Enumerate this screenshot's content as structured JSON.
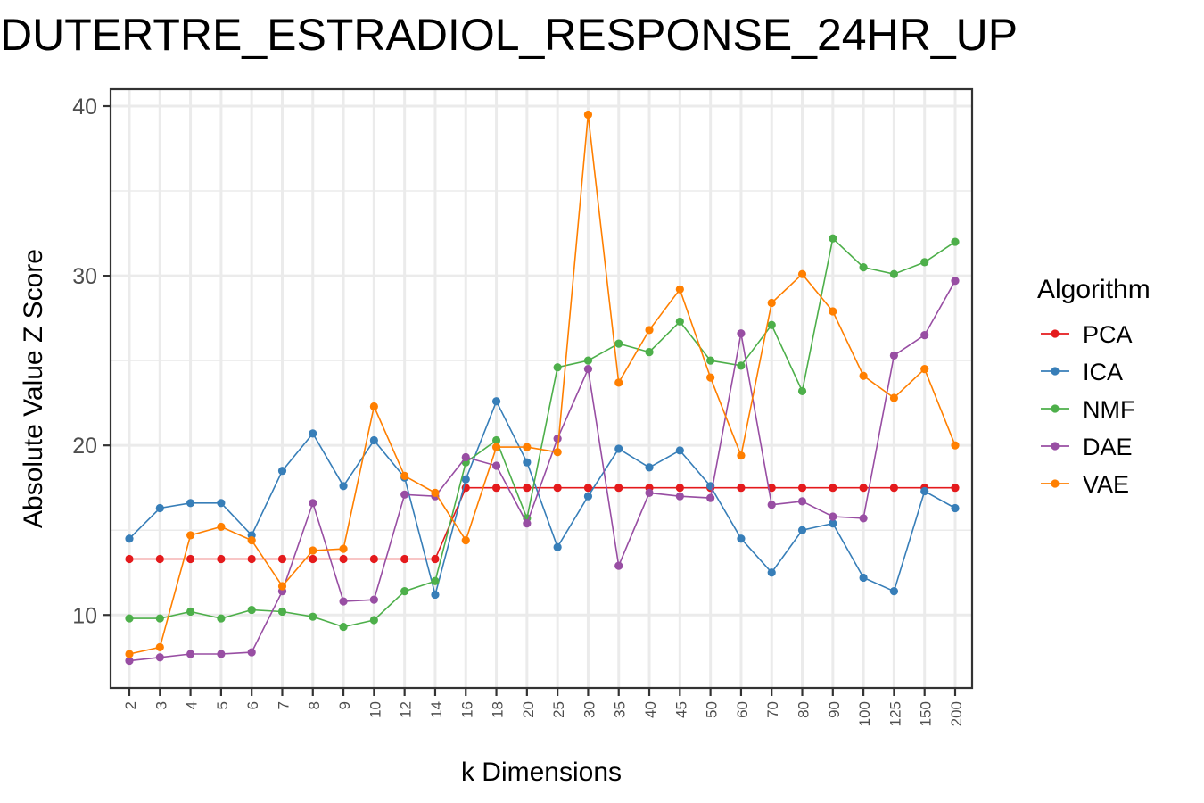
{
  "chart_data": {
    "type": "line",
    "title": "DUTERTRE_ESTRADIOL_RESPONSE_24HR_UP",
    "xlabel": "k Dimensions",
    "ylabel": "Absolute Value Z Score",
    "categories": [
      "2",
      "3",
      "4",
      "5",
      "6",
      "7",
      "8",
      "9",
      "10",
      "12",
      "14",
      "16",
      "18",
      "20",
      "25",
      "30",
      "35",
      "40",
      "45",
      "50",
      "60",
      "70",
      "80",
      "90",
      "100",
      "125",
      "150",
      "200"
    ],
    "ylim": [
      5.7,
      41
    ],
    "yticks": [
      10,
      20,
      30,
      40
    ],
    "grid": true,
    "legend": {
      "title": "Algorithm",
      "position": "right"
    },
    "series": [
      {
        "name": "PCA",
        "color": "#e41a1c",
        "values": [
          13.3,
          13.3,
          13.3,
          13.3,
          13.3,
          13.3,
          13.3,
          13.3,
          13.3,
          13.3,
          13.3,
          17.5,
          17.5,
          17.5,
          17.5,
          17.5,
          17.5,
          17.5,
          17.5,
          17.5,
          17.5,
          17.5,
          17.5,
          17.5,
          17.5,
          17.5,
          17.5,
          17.5
        ]
      },
      {
        "name": "ICA",
        "color": "#377eb8",
        "values": [
          14.5,
          16.3,
          16.6,
          16.6,
          14.7,
          18.5,
          20.7,
          17.6,
          20.3,
          18.1,
          11.2,
          18.0,
          22.6,
          19.0,
          14.0,
          17.0,
          19.8,
          18.7,
          19.7,
          17.6,
          14.5,
          12.5,
          15.0,
          15.4,
          12.2,
          11.4,
          17.3,
          16.3
        ]
      },
      {
        "name": "NMF",
        "color": "#4daf4a",
        "values": [
          9.8,
          9.8,
          10.2,
          9.8,
          10.3,
          10.2,
          9.9,
          9.3,
          9.7,
          11.4,
          12.0,
          19.0,
          20.3,
          15.7,
          24.6,
          25.0,
          26.0,
          25.5,
          27.3,
          25.0,
          24.7,
          27.1,
          23.2,
          32.2,
          30.5,
          30.1,
          30.8,
          32.0
        ]
      },
      {
        "name": "DAE",
        "color": "#984ea3",
        "values": [
          7.3,
          7.5,
          7.7,
          7.7,
          7.8,
          11.4,
          16.6,
          10.8,
          10.9,
          17.1,
          17.0,
          19.3,
          18.8,
          15.4,
          20.4,
          24.5,
          12.9,
          17.2,
          17.0,
          16.9,
          26.6,
          16.5,
          16.7,
          15.8,
          15.7,
          25.3,
          26.5,
          29.7
        ]
      },
      {
        "name": "VAE",
        "color": "#ff7f00",
        "values": [
          7.7,
          8.1,
          14.7,
          15.2,
          14.4,
          11.7,
          13.8,
          13.9,
          22.3,
          18.2,
          17.2,
          14.4,
          19.9,
          19.9,
          19.6,
          39.5,
          23.7,
          26.8,
          29.2,
          24.0,
          19.4,
          28.4,
          30.1,
          27.9,
          24.1,
          22.8,
          24.5,
          20.0
        ]
      }
    ]
  }
}
